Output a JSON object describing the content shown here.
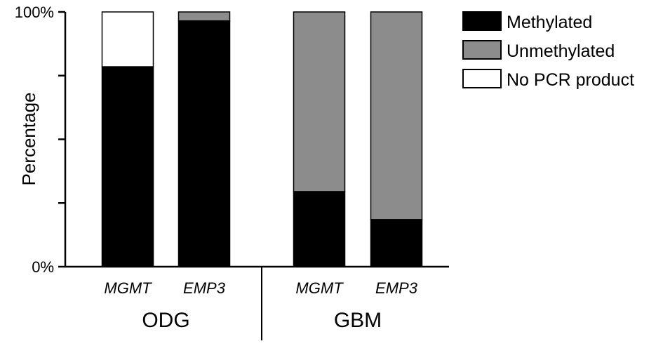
{
  "chart_data": {
    "type": "bar",
    "stacked": true,
    "ylabel": "Percentage",
    "ylim": [
      0,
      100
    ],
    "y_ticks": [
      0,
      25,
      50,
      75,
      100
    ],
    "y_tick_labels": {
      "0": "0%",
      "100": "100%"
    },
    "categories": [
      "MGMT",
      "EMP3",
      "MGMT",
      "EMP3"
    ],
    "groups": [
      {
        "label": "ODG",
        "category_indices": [
          0,
          1
        ]
      },
      {
        "label": "GBM",
        "category_indices": [
          2,
          3
        ]
      }
    ],
    "series": [
      {
        "name": "Methylated",
        "color": "#000000",
        "values": [
          78.5,
          96.5,
          29.5,
          18.5
        ]
      },
      {
        "name": "Unmethylated",
        "color": "#8c8c8c",
        "values": [
          0,
          3.5,
          70.5,
          81.5
        ]
      },
      {
        "name": "No PCR product",
        "color": "#ffffff",
        "values": [
          21.5,
          0,
          0,
          0
        ]
      }
    ],
    "legend_position": "top-right",
    "grid": false
  }
}
